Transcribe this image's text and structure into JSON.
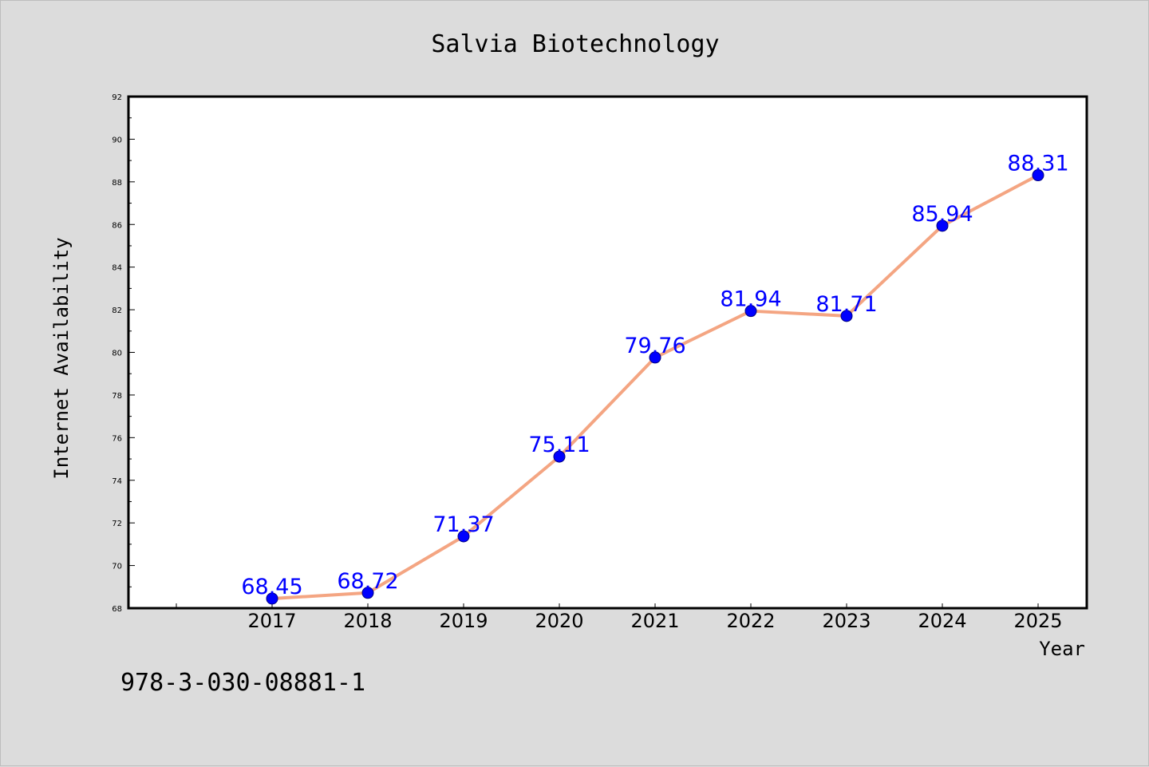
{
  "chart_data": {
    "type": "line",
    "title": "Salvia Biotechnology",
    "xlabel": "Year",
    "ylabel": "Internet Availability",
    "categories": [
      "2017",
      "2018",
      "2019",
      "2020",
      "2021",
      "2022",
      "2023",
      "2024",
      "2025"
    ],
    "series": [
      {
        "values": [
          68.45,
          68.72,
          71.37,
          75.11,
          79.76,
          81.94,
          81.71,
          85.94,
          88.31
        ],
        "labels": [
          "68.45",
          "68.72",
          "71.37",
          "75.11",
          "79.76",
          "81.94",
          "81.71",
          "85.94",
          "88.31"
        ],
        "line_color": "#f4a582",
        "marker_color": "#0000ff",
        "label_color": "#0000ff"
      }
    ],
    "ylim": [
      68,
      92
    ],
    "yticks": [
      "68",
      "70",
      "72",
      "74",
      "76",
      "78",
      "80",
      "82",
      "84",
      "86",
      "88",
      "90",
      "92"
    ],
    "grid": false,
    "legend": "none"
  },
  "footer_text": "978-3-030-08881-1"
}
